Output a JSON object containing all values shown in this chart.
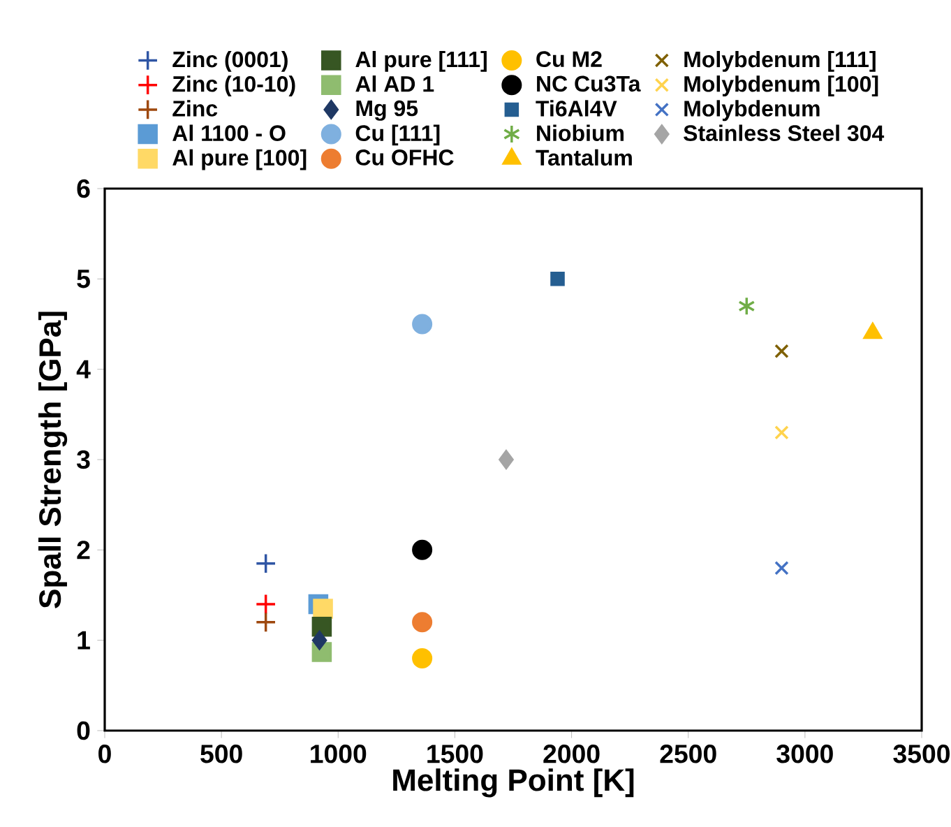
{
  "chart_data": {
    "type": "scatter",
    "xlabel": "Melting Point [K]",
    "ylabel": "Spall Strength [GPa]",
    "xlim": [
      0,
      3500
    ],
    "xticks": [
      0,
      500,
      1000,
      1500,
      2000,
      2500,
      3000,
      3500
    ],
    "ylim": [
      0,
      6
    ],
    "yticks": [
      0,
      1,
      2,
      3,
      4,
      5,
      6
    ],
    "legend": "top",
    "series": [
      {
        "name": "Zinc (0001)",
        "color": "#2f55a4",
        "marker": "plus",
        "x": [
          690
        ],
        "values": [
          1.85
        ]
      },
      {
        "name": "Zinc (10-10)",
        "color": "#ff0000",
        "marker": "plus",
        "x": [
          690
        ],
        "values": [
          1.4
        ]
      },
      {
        "name": "Zinc",
        "color": "#9e480e",
        "marker": "plus",
        "x": [
          690
        ],
        "values": [
          1.2
        ]
      },
      {
        "name": "Al 1100 - O",
        "color": "#5b9bd5",
        "marker": "square",
        "x": [
          915
        ],
        "values": [
          1.4
        ]
      },
      {
        "name": "Al pure [100]",
        "color": "#ffd966",
        "marker": "square",
        "x": [
          935
        ],
        "values": [
          1.35
        ]
      },
      {
        "name": "Al pure [111]",
        "color": "#375623",
        "marker": "square",
        "x": [
          930
        ],
        "values": [
          1.15
        ]
      },
      {
        "name": "Al AD 1",
        "color": "#8fbc6f",
        "marker": "square",
        "x": [
          930
        ],
        "values": [
          0.87
        ]
      },
      {
        "name": "Mg 95",
        "color": "#1f3864",
        "marker": "diamond",
        "x": [
          920
        ],
        "values": [
          1.0
        ]
      },
      {
        "name": "Cu [111]",
        "color": "#7fb0df",
        "marker": "circle",
        "x": [
          1360
        ],
        "values": [
          4.5
        ]
      },
      {
        "name": "Cu OFHC",
        "color": "#ed7d31",
        "marker": "circle",
        "x": [
          1360
        ],
        "values": [
          1.2
        ]
      },
      {
        "name": "Cu M2",
        "color": "#ffc000",
        "marker": "circle",
        "x": [
          1360
        ],
        "values": [
          0.8
        ]
      },
      {
        "name": "NC Cu3Ta",
        "color": "#000000",
        "marker": "circle",
        "x": [
          1360
        ],
        "values": [
          2.0
        ]
      },
      {
        "name": "Ti6Al4V",
        "color": "#255e91",
        "marker": "square",
        "x": [
          1940
        ],
        "values": [
          5.0
        ]
      },
      {
        "name": "Niobium",
        "color": "#70ad47",
        "x": [
          2750
        ],
        "values": [
          4.7
        ]
      },
      {
        "name": "Tantalum",
        "color": "#ffc000",
        "marker": "triangle",
        "x": [
          3290
        ],
        "values": [
          4.4
        ]
      },
      {
        "name": "Molybdenum [111]",
        "color": "#7f6000",
        "marker": "cross",
        "x": [
          2900
        ],
        "values": [
          4.2
        ]
      },
      {
        "name": "Molybdenum [100]",
        "color": "#ffd34d",
        "marker": "cross",
        "x": [
          2900
        ],
        "values": [
          3.3
        ]
      },
      {
        "name": "Molybdenum",
        "color": "#4472c4",
        "marker": "cross",
        "x": [
          2900
        ],
        "values": [
          1.8
        ]
      },
      {
        "name": "Stainless Steel 304",
        "color": "#a5a5a5",
        "marker": "diamond",
        "x": [
          1720
        ],
        "values": [
          3.0
        ]
      }
    ]
  }
}
